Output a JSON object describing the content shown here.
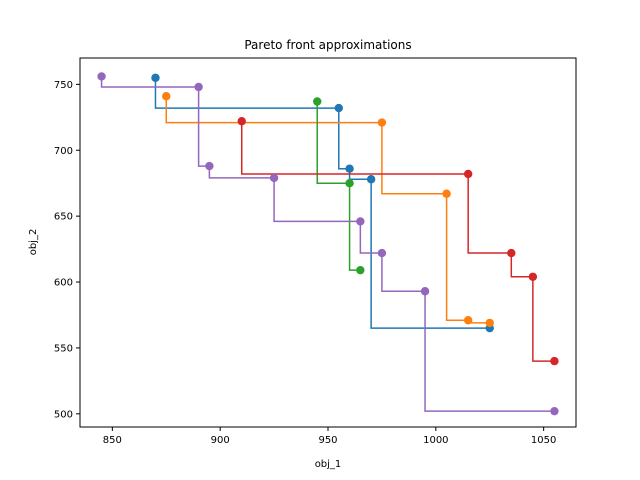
{
  "chart_data": {
    "type": "line",
    "subtype": "step-scatter",
    "title": "Pareto front approximations",
    "xlabel": "obj_1",
    "ylabel": "obj_2",
    "xlim": [
      835,
      1065
    ],
    "ylim": [
      490,
      770
    ],
    "xticks": [
      850,
      900,
      950,
      1000,
      1050
    ],
    "yticks": [
      500,
      550,
      600,
      650,
      700,
      750
    ],
    "grid": false,
    "legend": "none",
    "series": [
      {
        "color": "#1f77b4",
        "points": [
          [
            870,
            755
          ],
          [
            955,
            732
          ],
          [
            960,
            686
          ],
          [
            970,
            678
          ],
          [
            1025,
            565
          ]
        ]
      },
      {
        "color": "#ff7f0e",
        "points": [
          [
            875,
            741
          ],
          [
            975,
            721
          ],
          [
            1005,
            667
          ],
          [
            1015,
            571
          ],
          [
            1025,
            569
          ]
        ]
      },
      {
        "color": "#2ca02c",
        "points": [
          [
            945,
            737
          ],
          [
            960,
            675
          ],
          [
            965,
            609
          ]
        ]
      },
      {
        "color": "#d62728",
        "points": [
          [
            910,
            722
          ],
          [
            1015,
            682
          ],
          [
            1035,
            622
          ],
          [
            1045,
            604
          ],
          [
            1055,
            540
          ]
        ]
      },
      {
        "color": "#9467bd",
        "points": [
          [
            845,
            756
          ],
          [
            890,
            748
          ],
          [
            895,
            688
          ],
          [
            925,
            679
          ],
          [
            965,
            646
          ],
          [
            975,
            622
          ],
          [
            995,
            593
          ],
          [
            1055,
            502
          ]
        ]
      }
    ]
  }
}
